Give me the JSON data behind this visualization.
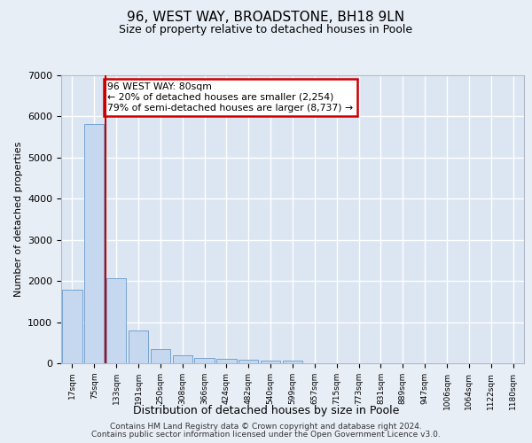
{
  "title1": "96, WEST WAY, BROADSTONE, BH18 9LN",
  "title2": "Size of property relative to detached houses in Poole",
  "xlabel": "Distribution of detached houses by size in Poole",
  "ylabel": "Number of detached properties",
  "bar_labels": [
    "17sqm",
    "75sqm",
    "133sqm",
    "191sqm",
    "250sqm",
    "308sqm",
    "366sqm",
    "424sqm",
    "482sqm",
    "540sqm",
    "599sqm",
    "657sqm",
    "715sqm",
    "773sqm",
    "831sqm",
    "889sqm",
    "947sqm",
    "1006sqm",
    "1064sqm",
    "1122sqm",
    "1180sqm"
  ],
  "bar_values": [
    1780,
    5820,
    2060,
    800,
    340,
    190,
    120,
    100,
    95,
    75,
    55,
    0,
    0,
    0,
    0,
    0,
    0,
    0,
    0,
    0,
    0
  ],
  "bar_color": "#c5d8ef",
  "bar_edge_color": "#6699cc",
  "vline_x": 1.5,
  "vline_color": "#cc0000",
  "annotation_text": "96 WEST WAY: 80sqm\n← 20% of detached houses are smaller (2,254)\n79% of semi-detached houses are larger (8,737) →",
  "annotation_box_color": "#ffffff",
  "annotation_box_edge": "#cc0000",
  "ylim": [
    0,
    7000
  ],
  "yticks": [
    0,
    1000,
    2000,
    3000,
    4000,
    5000,
    6000,
    7000
  ],
  "background_color": "#e8eef6",
  "plot_bg_color": "#dce6f2",
  "grid_color": "#ffffff",
  "footer1": "Contains HM Land Registry data © Crown copyright and database right 2024.",
  "footer2": "Contains public sector information licensed under the Open Government Licence v3.0."
}
